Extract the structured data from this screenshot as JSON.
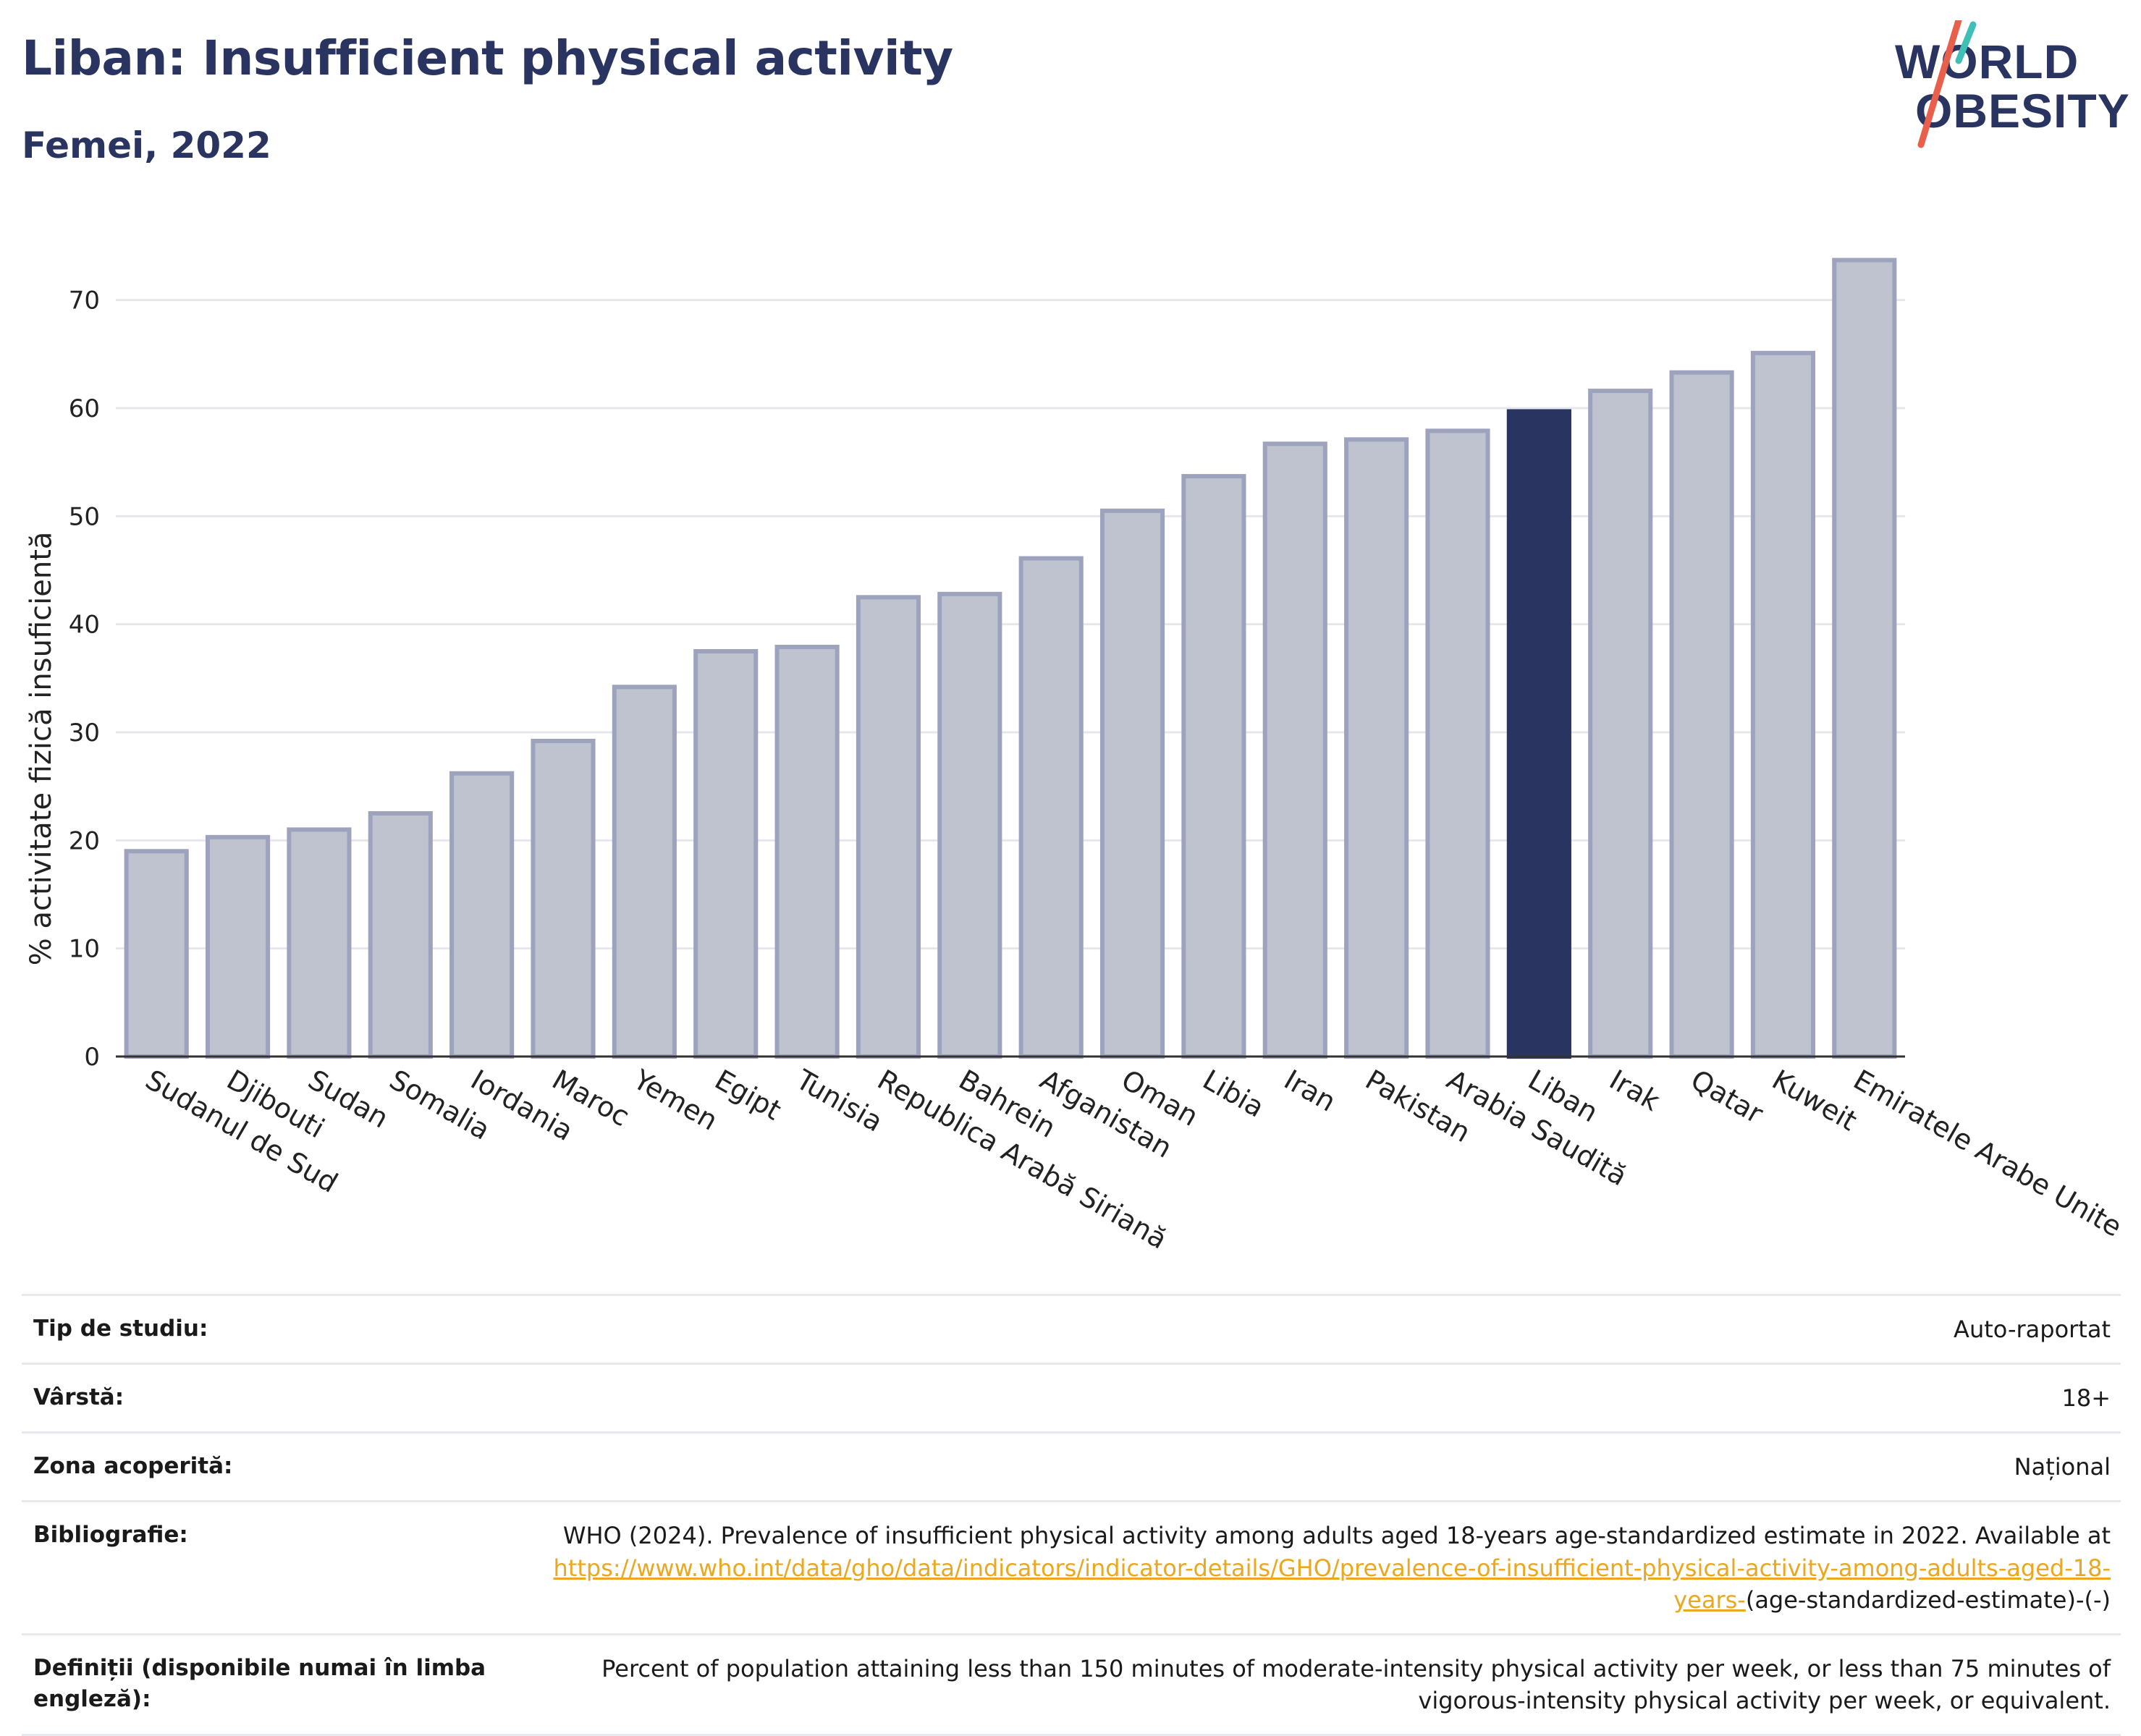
{
  "header": {
    "title": "Liban: Insufficient physical activity",
    "subtitle": "Femei, 2022"
  },
  "logo": {
    "line1": "WORLD",
    "line2": "OBESITY"
  },
  "chart_data": {
    "type": "bar",
    "ylabel": "% activitate fizică insuficientă",
    "xlabel": "",
    "ylim": [
      0,
      75
    ],
    "yticks": [
      0,
      10,
      20,
      30,
      40,
      50,
      60,
      70
    ],
    "grid": true,
    "highlight": "Liban",
    "colors": {
      "bar": "#bfc2cf",
      "bar_edge": "#9ea3bd",
      "highlight": "#2a3460",
      "grid": "#e6e7ec",
      "axis": "#333333"
    },
    "categories": [
      "Sudanul de Sud",
      "Djibouti",
      "Sudan",
      "Somalia",
      "Iordania",
      "Maroc",
      "Yemen",
      "Egipt",
      "Tunisia",
      "Republica Arabă Siriană",
      "Bahrein",
      "Afganistan",
      "Oman",
      "Libia",
      "Iran",
      "Pakistan",
      "Arabia Saudită",
      "Liban",
      "Irak",
      "Qatar",
      "Kuweit",
      "Emiratele Arabe Unite"
    ],
    "values": [
      19.0,
      20.3,
      21.0,
      22.5,
      26.2,
      29.2,
      34.2,
      37.5,
      37.9,
      42.5,
      42.8,
      46.1,
      50.5,
      53.7,
      56.7,
      57.1,
      57.9,
      59.7,
      61.6,
      63.3,
      65.1,
      73.7
    ]
  },
  "meta": {
    "rows": [
      {
        "label": "Tip de studiu:",
        "value": "Auto-raportat"
      },
      {
        "label": "Vârstă:",
        "value": "18+"
      },
      {
        "label": "Zona acoperită:",
        "value": "Național"
      }
    ],
    "bibliography": {
      "label": "Bibliografie:",
      "text": "WHO (2024). Prevalence of insufficient physical activity among adults aged 18-years age-standardized estimate in 2022. Available at",
      "link": "https://www.who.int/data/gho/data/indicators/indicator-details/GHO/prevalence-of-insufficient-physical-activity-among-adults-aged-18-years-",
      "suffix": "(age-standardized-estimate)-(-)"
    },
    "definitions": {
      "label": "Definiții (disponibile numai în limba engleză):",
      "value": "Percent of population attaining less than 150 minutes of moderate-intensity physical activity per week, or less than 75 minutes of vigorous-intensity physical activity per week, or equivalent."
    }
  }
}
